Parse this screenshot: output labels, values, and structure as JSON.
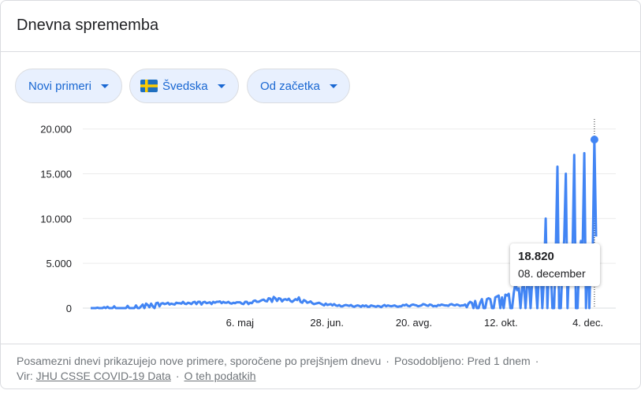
{
  "header": {
    "title": "Dnevna sprememba"
  },
  "filters": {
    "metric": "Novi primeri",
    "country": "Švedska",
    "range": "Od začetka"
  },
  "colors": {
    "line": "#4285f4",
    "chip_bg": "#e8f0fe",
    "chip_text": "#1967d2",
    "flag_blue": "#1f6fbf",
    "flag_yellow": "#fecc00"
  },
  "tooltip": {
    "value": "18.820",
    "date": "08. december"
  },
  "footer": {
    "note": "Posamezni dnevi prikazujejo nove primere, sporočene po prejšnjem dnevu",
    "updated": "Posodobljeno: Pred 1 dnem",
    "source_label": "Vir:",
    "source_link": "JHU CSSE COVID-19 Data",
    "about_link": "O teh podatkih"
  },
  "chart_data": {
    "type": "line",
    "title": "",
    "xlabel": "",
    "ylabel": "",
    "ylim": [
      0,
      22000
    ],
    "yticks": [
      0,
      5000,
      10000,
      15000,
      20000
    ],
    "ytick_labels": [
      "0",
      "5.000",
      "10.000",
      "15.000",
      "20.000"
    ],
    "xtick_labels": [
      "6. maj",
      "28. jun.",
      "20. avg.",
      "12. okt.",
      "4. dec."
    ],
    "grid": true,
    "x_start": "2020-02-05",
    "x_end": "2020-12-09",
    "highlight": {
      "date": "2020-12-08",
      "value": 18820
    },
    "series": [
      {
        "values": [
          0,
          0,
          0,
          0,
          50,
          1,
          0,
          0,
          100,
          0,
          150,
          0,
          0,
          1,
          200,
          0,
          0,
          1,
          0,
          2,
          0,
          0,
          250,
          1,
          2,
          0,
          0,
          300,
          0,
          0,
          200,
          400,
          0,
          500,
          350,
          100,
          500,
          200,
          0,
          550,
          600,
          200,
          500,
          550,
          450,
          500,
          600,
          400,
          500,
          450,
          400,
          600,
          550,
          550,
          500,
          700,
          500,
          450,
          600,
          550,
          450,
          650,
          700,
          450,
          700,
          700,
          400,
          650,
          700,
          550,
          600,
          650,
          450,
          700,
          600,
          700,
          700,
          750,
          550,
          700,
          600,
          600,
          700,
          550,
          500,
          600,
          550,
          650,
          650,
          650,
          500,
          450,
          700,
          700,
          450,
          600,
          550,
          800,
          850,
          700,
          700,
          800,
          900,
          950,
          800,
          750,
          1100,
          1050,
          700,
          1250,
          1100,
          800,
          1100,
          1050,
          750,
          950,
          1000,
          900,
          1050,
          800,
          700,
          850,
          1000,
          900,
          1200,
          700,
          600,
          900,
          800,
          600,
          650,
          750,
          550,
          450,
          500,
          550,
          600,
          500,
          400,
          300,
          500,
          350,
          400,
          450,
          300,
          450,
          300,
          250,
          350,
          200,
          200,
          300,
          350,
          300,
          250,
          350,
          200,
          150,
          250,
          300,
          250,
          150,
          300,
          200,
          300,
          150,
          150,
          300,
          250,
          200,
          150,
          250,
          200,
          100,
          250,
          350,
          200,
          300,
          250,
          200,
          250,
          300,
          200,
          150,
          200,
          200,
          350,
          300,
          400,
          250,
          200,
          350,
          400,
          350,
          300,
          200,
          250,
          300,
          450,
          400,
          300,
          250,
          400,
          350,
          200,
          250,
          200,
          350,
          300,
          400,
          350,
          300,
          300,
          250,
          400,
          450,
          350,
          300,
          400,
          350,
          250,
          300,
          300,
          400,
          100,
          500,
          700,
          600,
          0,
          800,
          0,
          0,
          600,
          1000,
          0,
          0,
          1000,
          1100,
          1000,
          0,
          0,
          1200,
          1300,
          1400,
          0,
          1200,
          0,
          1500,
          1400,
          1600,
          0,
          0,
          1700,
          2800,
          2000,
          2200,
          0,
          2300,
          2600,
          0,
          2800,
          3100,
          0,
          3100,
          2700,
          2900,
          0,
          3700,
          4500,
          0,
          3400,
          10000,
          0,
          5000,
          4500,
          0,
          0,
          6300,
          15800,
          0,
          0,
          4500,
          7600,
          15000,
          0,
          5000,
          6500,
          6400,
          17100,
          0,
          0,
          5200,
          7500,
          6500,
          17300,
          0,
          6800,
          0,
          7000,
          6000,
          18820,
          8000
        ]
      }
    ]
  }
}
